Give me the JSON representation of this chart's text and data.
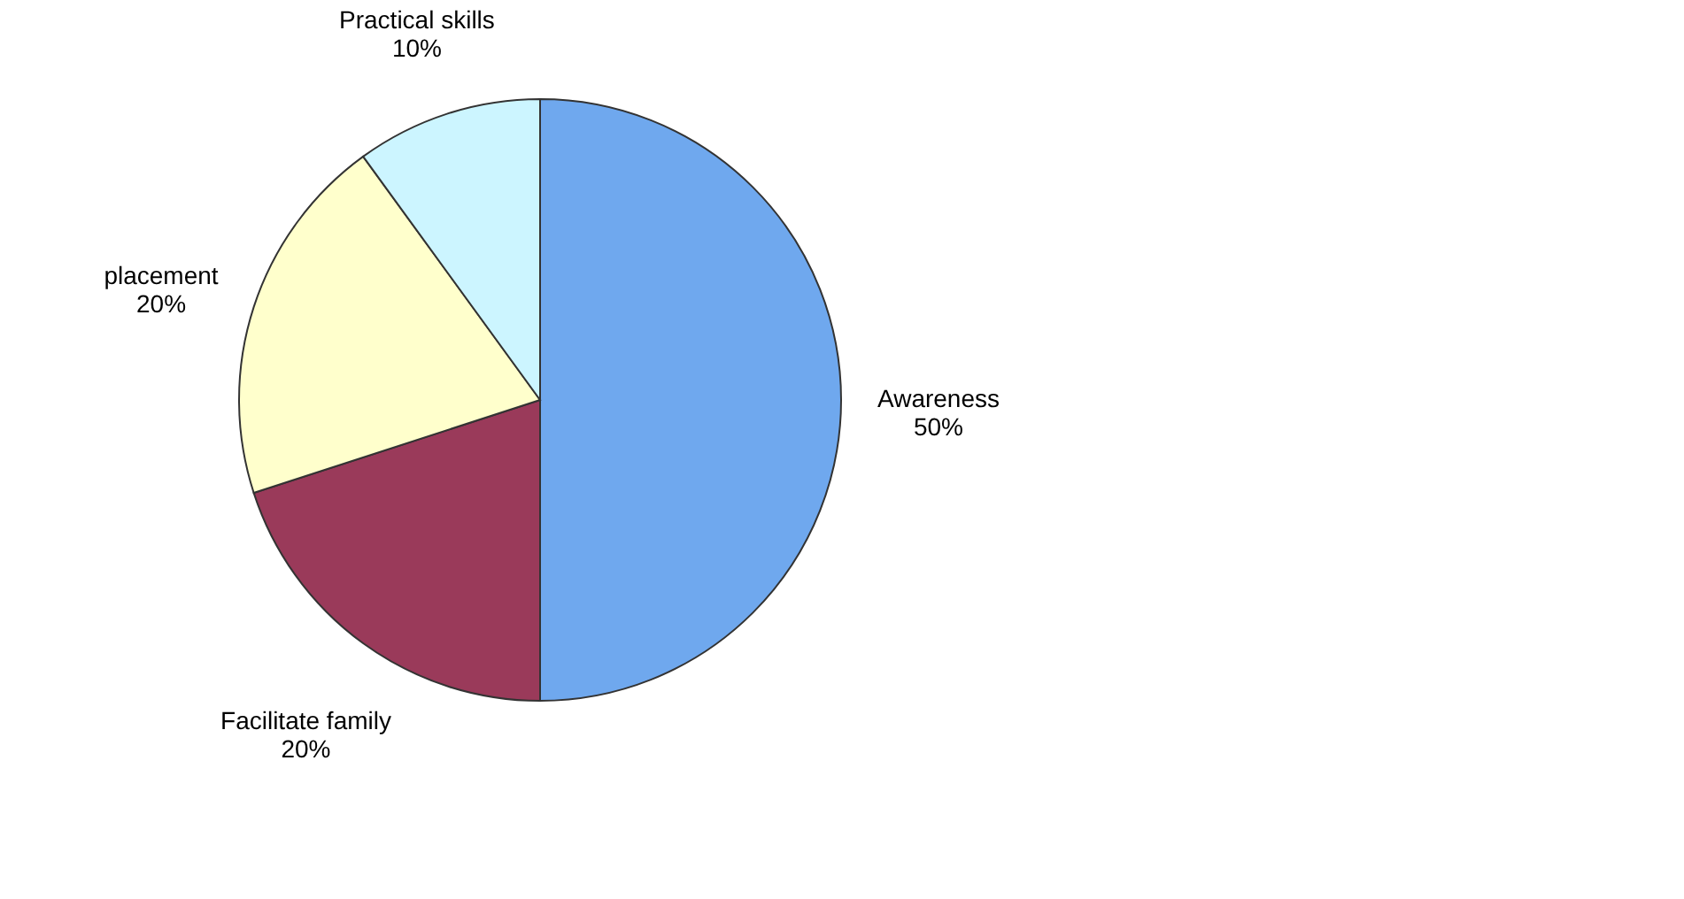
{
  "chart_data": {
    "type": "pie",
    "categories": [
      "Awareness",
      "Facilitate family",
      "placement",
      "Practical skills"
    ],
    "values": [
      50,
      20,
      20,
      10
    ],
    "colors": [
      "#6fa8ee",
      "#9a3a5a",
      "#ffffcc",
      "#ccf5ff"
    ],
    "value_labels": [
      "50%",
      "20%",
      "20%",
      "10%"
    ],
    "legend": false
  }
}
